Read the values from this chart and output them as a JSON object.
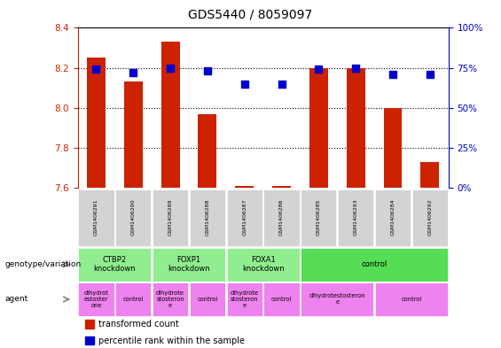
{
  "title": "GDS5440 / 8059097",
  "samples": [
    "GSM1406291",
    "GSM1406290",
    "GSM1406289",
    "GSM1406288",
    "GSM1406287",
    "GSM1406286",
    "GSM1406285",
    "GSM1406293",
    "GSM1406284",
    "GSM1406292"
  ],
  "red_values": [
    8.25,
    8.13,
    8.33,
    7.97,
    7.61,
    7.61,
    8.2,
    8.2,
    8.0,
    7.73
  ],
  "blue_values": [
    74,
    72,
    75,
    73,
    65,
    65,
    74,
    75,
    71,
    71
  ],
  "ylim_left": [
    7.6,
    8.4
  ],
  "ylim_right": [
    0,
    100
  ],
  "yticks_left": [
    7.6,
    7.8,
    8.0,
    8.2,
    8.4
  ],
  "yticks_right": [
    0,
    25,
    50,
    75,
    100
  ],
  "genotype_groups": [
    {
      "label": "CTBP2\nknockdown",
      "start": 0,
      "end": 2,
      "color": "#90EE90"
    },
    {
      "label": "FOXP1\nknockdown",
      "start": 2,
      "end": 4,
      "color": "#90EE90"
    },
    {
      "label": "FOXA1\nknockdown",
      "start": 4,
      "end": 6,
      "color": "#90EE90"
    },
    {
      "label": "control",
      "start": 6,
      "end": 10,
      "color": "#55DD55"
    }
  ],
  "agent_groups": [
    {
      "label": "dihydrot\nestoster\none",
      "start": 0,
      "end": 1,
      "color": "#EE82EE"
    },
    {
      "label": "control",
      "start": 1,
      "end": 2,
      "color": "#EE82EE"
    },
    {
      "label": "dihydrote\nstosteron\ne",
      "start": 2,
      "end": 3,
      "color": "#EE82EE"
    },
    {
      "label": "control",
      "start": 3,
      "end": 4,
      "color": "#EE82EE"
    },
    {
      "label": "dihydrote\nstosteron\ne",
      "start": 4,
      "end": 5,
      "color": "#EE82EE"
    },
    {
      "label": "control",
      "start": 5,
      "end": 6,
      "color": "#EE82EE"
    },
    {
      "label": "dihydrotestosteron\ne",
      "start": 6,
      "end": 8,
      "color": "#EE82EE"
    },
    {
      "label": "control",
      "start": 8,
      "end": 10,
      "color": "#EE82EE"
    }
  ],
  "bar_color": "#CC2200",
  "dot_color": "#0000CC",
  "bar_width": 0.5,
  "dot_size": 35,
  "left_axis_color": "#CC2200",
  "right_axis_color": "#0000CC",
  "fig_width": 5.65,
  "fig_height": 3.93,
  "dpi": 100
}
